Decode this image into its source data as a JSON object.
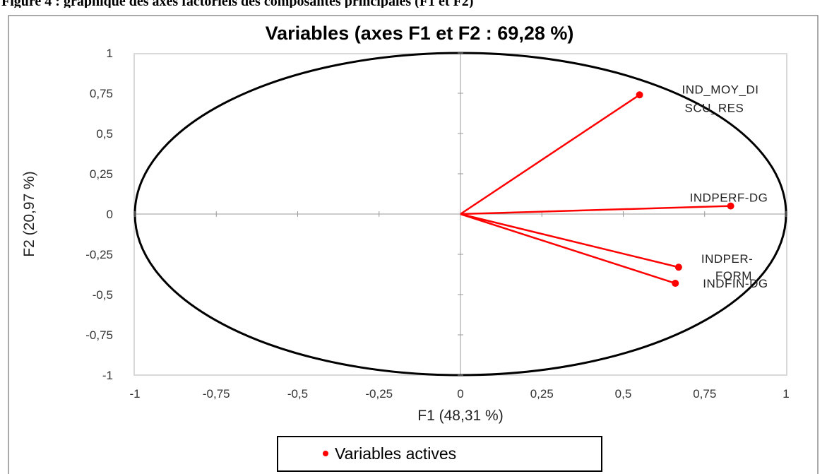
{
  "figure_caption": "Figure 4 : graphique des axes factoriels des composantes principales (F1 et F2)",
  "chart_data": {
    "type": "scatter",
    "title": "Variables (axes F1 et F2 : 69,28 %)",
    "xlabel": "F1 (48,31 %)",
    "ylabel": "F2 (20,97 %)",
    "xlim": [
      -1,
      1
    ],
    "ylim": [
      -1,
      1
    ],
    "x_ticks": [
      "-1",
      "-0,75",
      "-0,5",
      "-0,25",
      "0",
      "0,25",
      "0,5",
      "0,75",
      "1"
    ],
    "y_ticks": [
      "1",
      "0,75",
      "0,5",
      "0,25",
      "0",
      "-0,25",
      "-0,5",
      "-0,75",
      "-1"
    ],
    "unit_circle": true,
    "grid": false,
    "legend": {
      "position": "bottom",
      "entries": [
        "Variables actives"
      ]
    },
    "series": [
      {
        "name": "Variables actives",
        "color": "#ff0000",
        "points": [
          {
            "label": "IND_MOY_DISCU_RES",
            "label_lines": [
              "IND_MOY_DI",
              "SCU_RES"
            ],
            "x": 0.55,
            "y": 0.74
          },
          {
            "label": "INDPERF-DG",
            "label_lines": [
              "INDPERF-DG"
            ],
            "x": 0.83,
            "y": 0.05
          },
          {
            "label": "INDPER-FORM",
            "label_lines": [
              "INDPER-",
              "FORM"
            ],
            "x": 0.67,
            "y": -0.33
          },
          {
            "label": "INDFIN-DG",
            "label_lines": [
              "INDFIN-DG"
            ],
            "x": 0.66,
            "y": -0.43
          }
        ]
      }
    ]
  }
}
